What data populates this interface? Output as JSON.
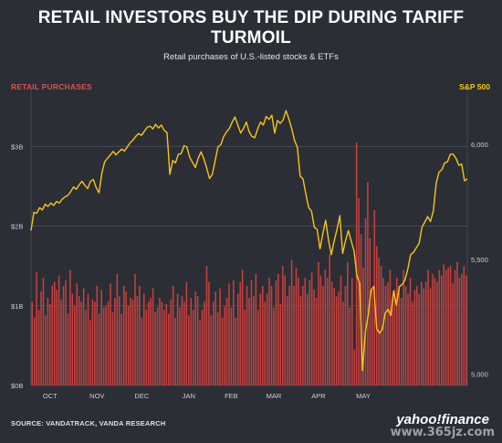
{
  "chart_data": {
    "type": "bar+line",
    "title": "RETAIL INVESTORS BUY THE DIP DURING TARIFF TURMOIL",
    "subtitle": "Retail purchases of U.S.-listed stocks & ETFs",
    "left_axis_label": "RETAIL PURCHASES",
    "right_axis_label": "S&P 500",
    "left_ticks": [
      "$0B",
      "$1B",
      "$2B",
      "$3B"
    ],
    "left_tick_values": [
      0,
      1,
      2,
      3
    ],
    "left_range": [
      0,
      3.6
    ],
    "right_ticks": [
      "5,000",
      "5,500",
      "6,000"
    ],
    "right_tick_values": [
      5000,
      5500,
      6000
    ],
    "right_range": [
      4950,
      6200
    ],
    "x_ticks": [
      "OCT",
      "NOV",
      "DEC",
      "JAN",
      "FEB",
      "MAR",
      "APR",
      "MAY"
    ],
    "x_tick_positions": [
      8,
      29,
      49,
      70,
      89,
      108,
      128,
      148
    ],
    "grid": true,
    "series": [
      {
        "name": "RETAIL PURCHASES",
        "color": "#c9413f",
        "kind": "bar",
        "values": [
          1.05,
          0.85,
          1.42,
          0.95,
          1.18,
          1.35,
          0.88,
          1.1,
          1.02,
          1.25,
          1.3,
          1.2,
          1.38,
          1.08,
          1.25,
          1.32,
          0.9,
          1.45,
          1.15,
          1.0,
          1.28,
          1.12,
          1.05,
          1.22,
          0.95,
          1.15,
          0.82,
          1.08,
          1.05,
          1.25,
          0.9,
          1.2,
          0.98,
          1.0,
          1.05,
          1.28,
          0.92,
          1.1,
          1.4,
          1.12,
          0.9,
          1.25,
          1.18,
          1.0,
          1.1,
          1.08,
          1.4,
          1.12,
          1.25,
          0.85,
          1.15,
          0.95,
          1.05,
          1.1,
          1.22,
          0.92,
          0.98,
          1.1,
          1.05,
          0.95,
          1.02,
          0.9,
          1.08,
          1.25,
          0.85,
          1.15,
          0.98,
          1.12,
          1.05,
          1.3,
          0.88,
          1.1,
          0.95,
          1.18,
          1.12,
          0.82,
          0.95,
          1.05,
          1.5,
          1.3,
          0.88,
          1.05,
          1.18,
          0.92,
          1.22,
          0.85,
          1.0,
          1.1,
          1.28,
          0.98,
          1.32,
          0.85,
          1.15,
          1.3,
          1.45,
          0.95,
          1.25,
          1.1,
          1.32,
          1.12,
          1.4,
          0.95,
          1.15,
          1.25,
          1.05,
          1.15,
          1.35,
          1.25,
          0.98,
          1.32,
          1.4,
          1.02,
          1.5,
          1.38,
          1.12,
          1.25,
          1.58,
          1.25,
          1.48,
          1.35,
          1.12,
          1.25,
          1.35,
          1.15,
          1.32,
          1.42,
          1.2,
          1.1,
          1.55,
          1.38,
          1.25,
          1.45,
          1.35,
          1.65,
          1.3,
          1.22,
          1.12,
          1.18,
          1.38,
          1.05,
          1.25,
          1.55,
          0.98,
          1.35,
          0.45,
          3.05,
          2.35,
          1.9,
          1.48,
          2.1,
          2.55,
          1.85,
          1.2,
          2.2,
          1.75,
          1.6,
          1.5,
          1.35,
          1.25,
          1.3,
          1.45,
          1.1,
          1.2,
          1.35,
          1.25,
          1.1,
          1.45,
          1.25,
          1.15,
          1.35,
          1.05,
          1.2,
          1.25,
          1.15,
          1.3,
          1.22,
          1.3,
          1.45,
          1.22,
          1.4,
          1.35,
          1.3,
          1.45,
          1.38,
          1.52,
          1.45,
          1.48,
          1.5,
          1.28,
          1.45,
          1.55,
          1.35,
          1.4,
          1.5,
          1.38
        ]
      },
      {
        "name": "S&P 500",
        "color": "#f5c518",
        "kind": "line",
        "values": [
          5625,
          5705,
          5700,
          5725,
          5715,
          5740,
          5730,
          5745,
          5735,
          5752,
          5745,
          5762,
          5772,
          5778,
          5795,
          5815,
          5805,
          5825,
          5840,
          5822,
          5808,
          5840,
          5848,
          5812,
          5790,
          5875,
          5925,
          5940,
          5955,
          5970,
          5955,
          5968,
          5980,
          5972,
          5990,
          6008,
          6020,
          6036,
          6048,
          6040,
          6058,
          6075,
          6080,
          6068,
          6088,
          6072,
          6085,
          6062,
          6052,
          5870,
          5930,
          5920,
          5958,
          5960,
          5995,
          5990,
          5945,
          5922,
          5900,
          5940,
          5968,
          5938,
          5898,
          5852,
          5870,
          5930,
          5990,
          6000,
          6035,
          6055,
          6070,
          6098,
          6120,
          6085,
          6050,
          6070,
          6098,
          6055,
          6035,
          6030,
          6068,
          6098,
          6085,
          6122,
          6110,
          6128,
          6050,
          6105,
          6092,
          6108,
          6148,
          6112,
          6070,
          6018,
          5988,
          5862,
          5850,
          5785,
          5725,
          5710,
          5640,
          5630,
          5545,
          5612,
          5670,
          5584,
          5520,
          5580,
          5630,
          5690,
          5525,
          5580,
          5625,
          5580,
          5538,
          5430,
          5395,
          5015,
          5182,
          5255,
          5365,
          5382,
          5198,
          5178,
          5195,
          5265,
          5282,
          5255,
          5362,
          5300,
          5380,
          5390,
          5410,
          5458,
          5520,
          5530,
          5550,
          5570,
          5640,
          5662,
          5686,
          5665,
          5710,
          5830,
          5880,
          5890,
          5920,
          5925,
          5958,
          5958,
          5940,
          5910,
          5915,
          5842,
          5850
        ]
      }
    ]
  },
  "source": "SOURCE: VANDATRACK, VANDA RESEARCH",
  "logo": "yahoo!finance",
  "watermark": "www.365jz.com"
}
